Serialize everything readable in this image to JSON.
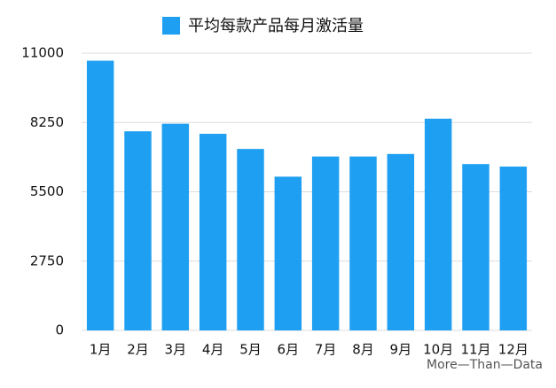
{
  "chart_data": {
    "type": "bar",
    "legend": "平均每款产品每月激活量",
    "categories": [
      "1月",
      "2月",
      "3月",
      "4月",
      "5月",
      "6月",
      "7月",
      "8月",
      "9月",
      "10月",
      "11月",
      "12月"
    ],
    "values": [
      10700,
      7900,
      8200,
      7800,
      7200,
      6100,
      6900,
      6900,
      7000,
      8400,
      6600,
      6500
    ],
    "color": "#1f9ff1",
    "ylim": [
      0,
      11000
    ],
    "yticks": [
      0,
      2750,
      5500,
      8250,
      11000
    ],
    "grid": true,
    "footer": "More—Than—Data"
  }
}
